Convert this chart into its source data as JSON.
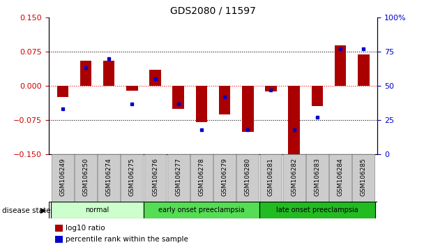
{
  "title": "GDS2080 / 11597",
  "samples": [
    "GSM106249",
    "GSM106250",
    "GSM106274",
    "GSM106275",
    "GSM106276",
    "GSM106277",
    "GSM106278",
    "GSM106279",
    "GSM106280",
    "GSM106281",
    "GSM106282",
    "GSM106283",
    "GSM106284",
    "GSM106285"
  ],
  "log10_ratio": [
    -0.025,
    0.055,
    0.055,
    -0.01,
    0.035,
    -0.05,
    -0.08,
    -0.062,
    -0.1,
    -0.012,
    -0.155,
    -0.045,
    0.088,
    0.068
  ],
  "percentile_rank": [
    33,
    63,
    70,
    37,
    55,
    37,
    18,
    42,
    18,
    47,
    18,
    27,
    77,
    77
  ],
  "groups": [
    {
      "label": "normal",
      "start": 0,
      "end": 3,
      "color": "#ccffcc"
    },
    {
      "label": "early onset preeclampsia",
      "start": 4,
      "end": 8,
      "color": "#55dd55"
    },
    {
      "label": "late onset preeclampsia",
      "start": 9,
      "end": 13,
      "color": "#22bb22"
    }
  ],
  "ylim_left": [
    -0.15,
    0.15
  ],
  "ylim_right": [
    0,
    100
  ],
  "yticks_left": [
    -0.15,
    -0.075,
    0,
    0.075,
    0.15
  ],
  "yticks_right": [
    0,
    25,
    50,
    75,
    100
  ],
  "ytick_labels_right": [
    "0",
    "25",
    "50",
    "75",
    "100%"
  ],
  "hlines": [
    0.075,
    0,
    -0.075
  ],
  "bar_color": "#aa0000",
  "dot_color": "#0000cc",
  "left_tick_color": "#cc0000",
  "right_tick_color": "#0000cc",
  "legend_bar_label": "log10 ratio",
  "legend_dot_label": "percentile rank within the sample",
  "disease_state_label": "disease state",
  "background_color": "#ffffff",
  "plot_bg_color": "#ffffff",
  "bar_width": 0.5
}
